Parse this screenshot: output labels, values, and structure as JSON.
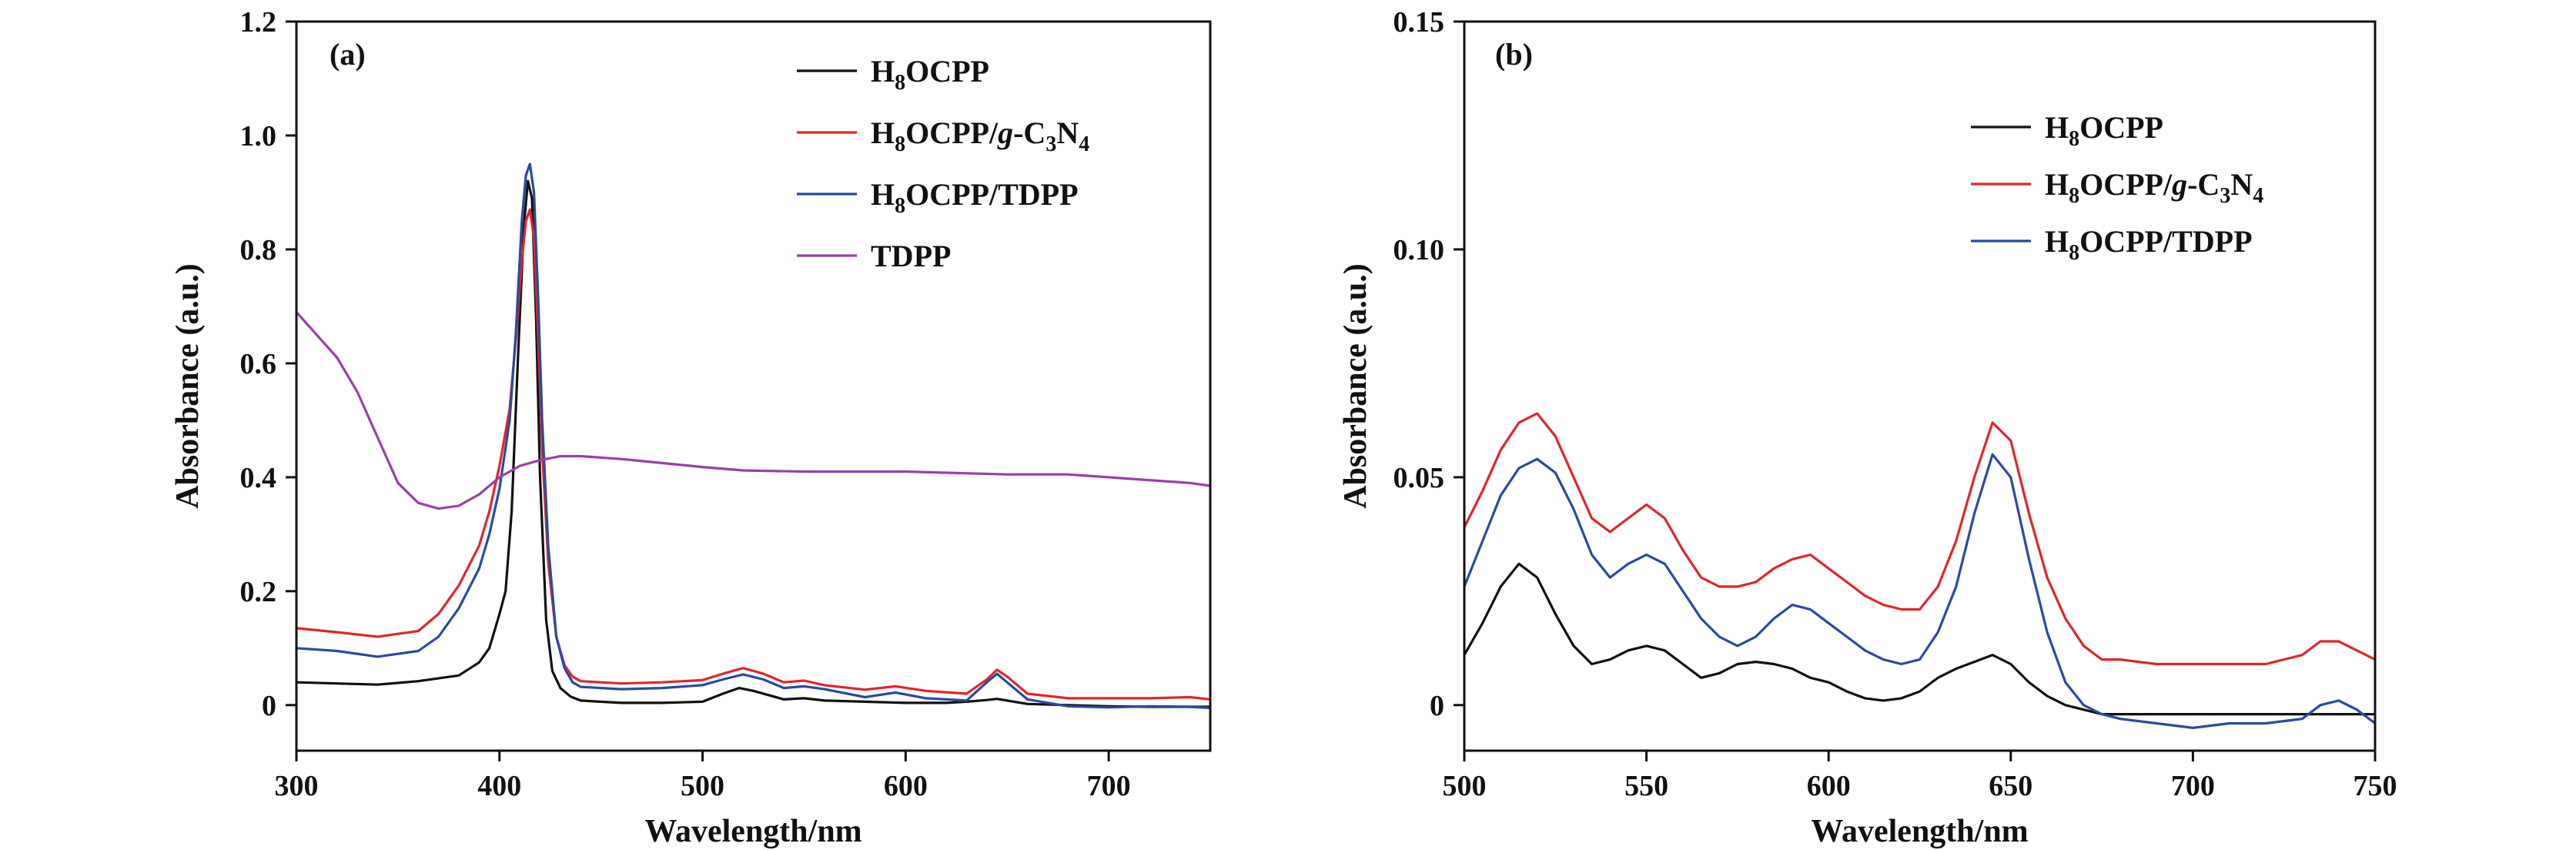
{
  "chart_data": [
    {
      "type": "line",
      "panel_label": "(a)",
      "xlabel": "Wavelength/nm",
      "ylabel": "Absorbance (a.u.)",
      "xlim": [
        300,
        750
      ],
      "ylim": [
        -0.08,
        1.2
      ],
      "xticks": [
        300,
        400,
        500,
        600,
        700
      ],
      "yticks": [
        0,
        0.2,
        0.4,
        0.6,
        0.8,
        1.0,
        1.2
      ],
      "ytick_labels": [
        "0",
        "0.2",
        "0.4",
        "0.6",
        "0.8",
        "1.0",
        "1.2"
      ],
      "legend_position": "top-right",
      "grid": false,
      "series": [
        {
          "name": "H8OCPP",
          "legend_base": "H",
          "legend_sub1": "8",
          "legend_rest": "OCPP",
          "color": "#111111",
          "x": [
            300,
            320,
            340,
            360,
            380,
            390,
            395,
            400,
            403,
            406,
            409,
            412,
            414,
            416,
            418,
            420,
            423,
            426,
            430,
            435,
            440,
            460,
            480,
            500,
            510,
            518,
            525,
            540,
            550,
            560,
            580,
            600,
            620,
            630,
            640,
            645,
            650,
            660,
            680,
            700,
            720,
            740,
            750
          ],
          "y": [
            0.04,
            0.038,
            0.036,
            0.042,
            0.052,
            0.075,
            0.1,
            0.16,
            0.2,
            0.34,
            0.6,
            0.84,
            0.92,
            0.89,
            0.68,
            0.4,
            0.15,
            0.06,
            0.03,
            0.015,
            0.008,
            0.004,
            0.004,
            0.006,
            0.02,
            0.03,
            0.025,
            0.01,
            0.012,
            0.008,
            0.006,
            0.004,
            0.004,
            0.006,
            0.009,
            0.011,
            0.008,
            0.002,
            0.0,
            -0.002,
            -0.003,
            -0.003,
            -0.003
          ]
        },
        {
          "name": "H8OCPP/g-C3N4",
          "legend_base": "H",
          "legend_sub1": "8",
          "legend_rest": "OCPP/",
          "legend_italic": "g",
          "legend_rest2": "-C",
          "legend_sub2": "3",
          "legend_rest3": "N",
          "legend_sub3": "4",
          "color": "#e0262b",
          "x": [
            300,
            320,
            340,
            360,
            370,
            380,
            390,
            395,
            400,
            405,
            408,
            411,
            413,
            415,
            417,
            419,
            421,
            424,
            428,
            432,
            436,
            440,
            460,
            480,
            500,
            510,
            520,
            530,
            540,
            550,
            560,
            580,
            595,
            610,
            630,
            640,
            645,
            650,
            660,
            680,
            700,
            720,
            740,
            750
          ],
          "y": [
            0.135,
            0.128,
            0.12,
            0.13,
            0.16,
            0.21,
            0.28,
            0.34,
            0.42,
            0.52,
            0.64,
            0.78,
            0.85,
            0.87,
            0.82,
            0.65,
            0.45,
            0.25,
            0.12,
            0.07,
            0.05,
            0.042,
            0.038,
            0.04,
            0.044,
            0.055,
            0.065,
            0.055,
            0.04,
            0.043,
            0.035,
            0.027,
            0.033,
            0.025,
            0.02,
            0.045,
            0.062,
            0.05,
            0.02,
            0.012,
            0.012,
            0.012,
            0.014,
            0.01
          ]
        },
        {
          "name": "H8OCPP/TDPP",
          "legend_base": "H",
          "legend_sub1": "8",
          "legend_rest": "OCPP/TDPP",
          "color": "#2a4aa0",
          "x": [
            300,
            320,
            340,
            360,
            370,
            380,
            390,
            395,
            400,
            405,
            408,
            411,
            413,
            415,
            417,
            419,
            421,
            424,
            428,
            432,
            436,
            440,
            460,
            480,
            500,
            510,
            520,
            530,
            540,
            550,
            560,
            580,
            595,
            610,
            630,
            640,
            645,
            650,
            660,
            680,
            700,
            720,
            740,
            750
          ],
          "y": [
            0.1,
            0.095,
            0.085,
            0.095,
            0.12,
            0.17,
            0.24,
            0.3,
            0.38,
            0.5,
            0.65,
            0.85,
            0.93,
            0.95,
            0.9,
            0.72,
            0.5,
            0.28,
            0.12,
            0.065,
            0.04,
            0.032,
            0.028,
            0.03,
            0.035,
            0.045,
            0.054,
            0.045,
            0.03,
            0.033,
            0.028,
            0.014,
            0.022,
            0.012,
            0.008,
            0.04,
            0.055,
            0.04,
            0.01,
            -0.002,
            -0.004,
            -0.002,
            -0.003,
            -0.005
          ]
        },
        {
          "name": "TDPP",
          "legend_base": "TDPP",
          "color": "#9b3fa8",
          "x": [
            300,
            310,
            320,
            330,
            340,
            350,
            360,
            370,
            380,
            390,
            400,
            410,
            420,
            430,
            440,
            460,
            480,
            500,
            520,
            550,
            580,
            600,
            620,
            650,
            680,
            700,
            720,
            740,
            750
          ],
          "y": [
            0.69,
            0.65,
            0.61,
            0.55,
            0.47,
            0.39,
            0.355,
            0.345,
            0.35,
            0.37,
            0.4,
            0.42,
            0.43,
            0.437,
            0.437,
            0.432,
            0.425,
            0.418,
            0.412,
            0.41,
            0.41,
            0.41,
            0.408,
            0.405,
            0.405,
            0.4,
            0.395,
            0.39,
            0.385
          ]
        }
      ]
    },
    {
      "type": "line",
      "panel_label": "(b)",
      "xlabel": "Wavelength/nm",
      "ylabel": "Absorbance (a.u.)",
      "xlim": [
        500,
        750
      ],
      "ylim": [
        -0.01,
        0.15
      ],
      "xticks": [
        500,
        550,
        600,
        650,
        700,
        750
      ],
      "yticks": [
        0,
        0.05,
        0.1,
        0.15
      ],
      "ytick_labels": [
        "0",
        "0.05",
        "0.10",
        "0.15"
      ],
      "legend_position": "top-right",
      "grid": false,
      "series": [
        {
          "name": "H8OCPP",
          "legend_base": "H",
          "legend_sub1": "8",
          "legend_rest": "OCPP",
          "color": "#111111",
          "x": [
            500,
            505,
            510,
            515,
            520,
            525,
            530,
            535,
            540,
            545,
            550,
            555,
            560,
            565,
            570,
            575,
            580,
            585,
            590,
            595,
            600,
            605,
            610,
            615,
            620,
            625,
            630,
            635,
            640,
            645,
            650,
            655,
            660,
            665,
            670,
            675,
            680,
            690,
            700,
            710,
            720,
            730,
            740,
            750
          ],
          "y": [
            0.011,
            0.018,
            0.026,
            0.031,
            0.028,
            0.02,
            0.013,
            0.009,
            0.01,
            0.012,
            0.013,
            0.012,
            0.009,
            0.006,
            0.007,
            0.009,
            0.0095,
            0.009,
            0.008,
            0.006,
            0.005,
            0.003,
            0.0015,
            0.001,
            0.0015,
            0.003,
            0.006,
            0.008,
            0.0095,
            0.011,
            0.009,
            0.005,
            0.002,
            0.0,
            -0.001,
            -0.002,
            -0.002,
            -0.002,
            -0.002,
            -0.002,
            -0.002,
            -0.002,
            -0.002,
            -0.002
          ]
        },
        {
          "name": "H8OCPP/g-C3N4",
          "legend_base": "H",
          "legend_sub1": "8",
          "legend_rest": "OCPP/",
          "legend_italic": "g",
          "legend_rest2": "-C",
          "legend_sub2": "3",
          "legend_rest3": "N",
          "legend_sub3": "4",
          "color": "#e0262b",
          "x": [
            500,
            505,
            510,
            515,
            520,
            525,
            530,
            535,
            540,
            545,
            550,
            555,
            560,
            565,
            570,
            575,
            580,
            585,
            590,
            595,
            600,
            605,
            610,
            615,
            620,
            625,
            630,
            635,
            640,
            645,
            650,
            655,
            660,
            665,
            670,
            675,
            680,
            690,
            700,
            710,
            720,
            730,
            735,
            740,
            745,
            750
          ],
          "y": [
            0.039,
            0.047,
            0.056,
            0.062,
            0.064,
            0.059,
            0.05,
            0.041,
            0.038,
            0.041,
            0.044,
            0.041,
            0.034,
            0.028,
            0.026,
            0.026,
            0.027,
            0.03,
            0.032,
            0.033,
            0.03,
            0.027,
            0.024,
            0.022,
            0.021,
            0.021,
            0.026,
            0.036,
            0.05,
            0.062,
            0.058,
            0.042,
            0.028,
            0.019,
            0.013,
            0.01,
            0.01,
            0.009,
            0.009,
            0.009,
            0.009,
            0.011,
            0.014,
            0.014,
            0.012,
            0.01
          ]
        },
        {
          "name": "H8OCPP/TDPP",
          "legend_base": "H",
          "legend_sub1": "8",
          "legend_rest": "OCPP/TDPP",
          "color": "#2a4aa0",
          "x": [
            500,
            505,
            510,
            515,
            520,
            525,
            530,
            535,
            540,
            545,
            550,
            555,
            560,
            565,
            570,
            575,
            580,
            585,
            590,
            595,
            600,
            605,
            610,
            615,
            620,
            625,
            630,
            635,
            640,
            645,
            650,
            655,
            660,
            665,
            670,
            675,
            680,
            690,
            700,
            710,
            720,
            730,
            735,
            740,
            745,
            750
          ],
          "y": [
            0.026,
            0.036,
            0.046,
            0.052,
            0.054,
            0.051,
            0.043,
            0.033,
            0.028,
            0.031,
            0.033,
            0.031,
            0.025,
            0.019,
            0.015,
            0.013,
            0.015,
            0.019,
            0.022,
            0.021,
            0.018,
            0.015,
            0.012,
            0.01,
            0.009,
            0.01,
            0.016,
            0.026,
            0.042,
            0.055,
            0.05,
            0.032,
            0.016,
            0.005,
            0.0,
            -0.002,
            -0.003,
            -0.004,
            -0.005,
            -0.004,
            -0.004,
            -0.003,
            0.0,
            0.001,
            -0.001,
            -0.004
          ]
        }
      ]
    }
  ]
}
